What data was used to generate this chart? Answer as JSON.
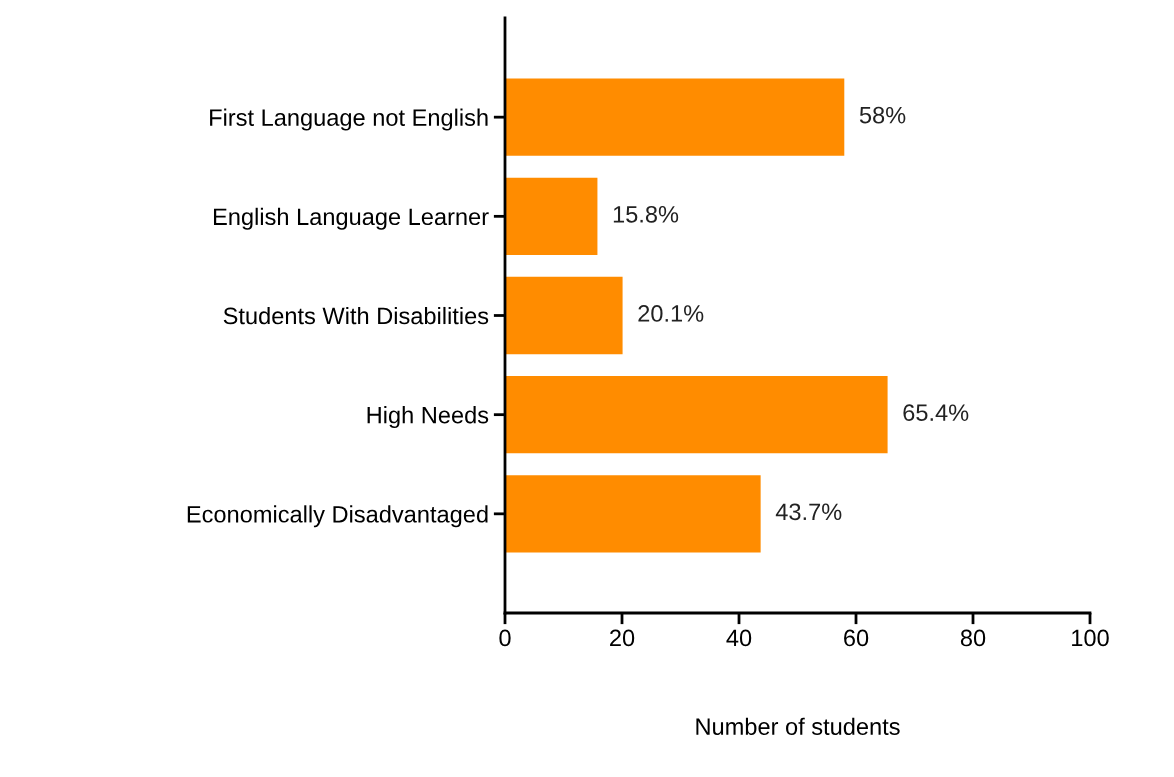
{
  "chart_data": {
    "type": "bar",
    "orientation": "horizontal",
    "xlabel": "Number of students",
    "categories": [
      "First Language not English",
      "English Language Learner",
      "Students With Disabilities",
      "High Needs",
      "Economically Disadvantaged"
    ],
    "values": [
      58,
      15.8,
      20.1,
      65.4,
      43.7
    ],
    "value_labels": [
      "58%",
      "15.8%",
      "20.1%",
      "65.4%",
      "43.7%"
    ],
    "color": "#ff8c00",
    "xlim": [
      0,
      100
    ],
    "xticks": [
      0,
      20,
      40,
      60,
      80,
      100
    ],
    "grid": false,
    "legend": false
  }
}
